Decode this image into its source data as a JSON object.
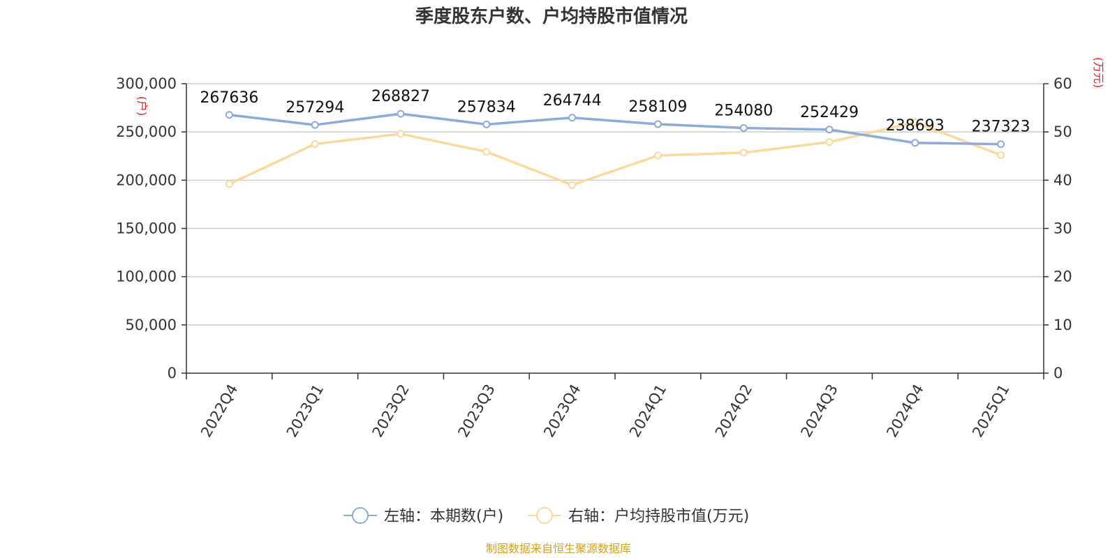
{
  "chart_data": {
    "type": "line",
    "title": "季度股东户数、户均持股市值情况",
    "categories": [
      "2022Q4",
      "2023Q1",
      "2023Q2",
      "2023Q3",
      "2023Q4",
      "2024Q1",
      "2024Q2",
      "2024Q3",
      "2024Q4",
      "2025Q1"
    ],
    "y_left": {
      "unit": "(户)",
      "ylim": [
        0,
        300000
      ],
      "ticks": [
        "0",
        "50,000",
        "100,000",
        "150,000",
        "200,000",
        "250,000",
        "300,000"
      ],
      "tick_values": [
        0,
        50000,
        100000,
        150000,
        200000,
        250000,
        300000
      ]
    },
    "y_right": {
      "unit": "(万元)",
      "ylim": [
        0,
        60
      ],
      "ticks": [
        "0",
        "10",
        "20",
        "30",
        "40",
        "50",
        "60"
      ],
      "tick_values": [
        0,
        10,
        20,
        30,
        40,
        50,
        60
      ]
    },
    "grid": true,
    "legend_position": "bottom",
    "series": [
      {
        "name": "左轴：本期数(户)",
        "axis": "left",
        "color": "#8eaadb",
        "values": [
          267636,
          257294,
          268827,
          257834,
          264744,
          258109,
          254080,
          252429,
          238693,
          237323
        ],
        "labels": [
          "267636",
          "257294",
          "268827",
          "257834",
          "264744",
          "258109",
          "254080",
          "252429",
          "238693",
          "237323"
        ]
      },
      {
        "name": "右轴：户均持股市值(万元)",
        "axis": "right",
        "color": "#fcd89a",
        "values": [
          39.2,
          47.5,
          49.6,
          45.9,
          39.0,
          45.1,
          45.7,
          47.9,
          52.0,
          45.2
        ]
      }
    ],
    "source": "制图数据来自恒生聚源数据库",
    "colors": {
      "axis_unit": "#e02020",
      "source": "#d4a017",
      "grid": "#cccccc",
      "axis": "#333333"
    }
  }
}
